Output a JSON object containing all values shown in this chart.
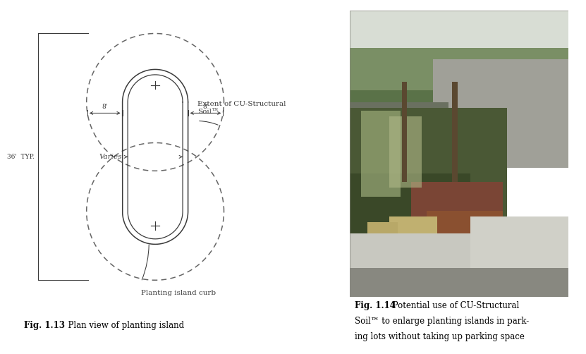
{
  "bg_color": "#ffffff",
  "line_color": "#3a3a3a",
  "dashed_color": "#666666",
  "fig_caption_bold": "Fig. 1.13",
  "fig_caption_rest": "  Plan view of planting island",
  "label_extent": "Extent of CU-Structural\nSoil™",
  "label_curb": "Planting island curb",
  "label_varies": "Varies",
  "label_36": "36'  TYP.",
  "label_8left": "8'",
  "label_8right": "8'",
  "fig114_caption_bold": "Fig. 1.14",
  "fig114_line1": " Potential use of CU-Structural",
  "fig114_line2": "Soil™ to enlarge planting islands in park-",
  "fig114_line3": "ing lots without taking up parking space",
  "photo_colors": {
    "sky": "#c8d4c0",
    "trees_bg": "#8a9e70",
    "trees_fg": "#5a7040",
    "pavement": "#9a9a98",
    "bed_dark": "#4a5e30",
    "curb": "#d8d8d0",
    "flowers_red": "#8a4030",
    "flowers_light": "#c8b880"
  }
}
